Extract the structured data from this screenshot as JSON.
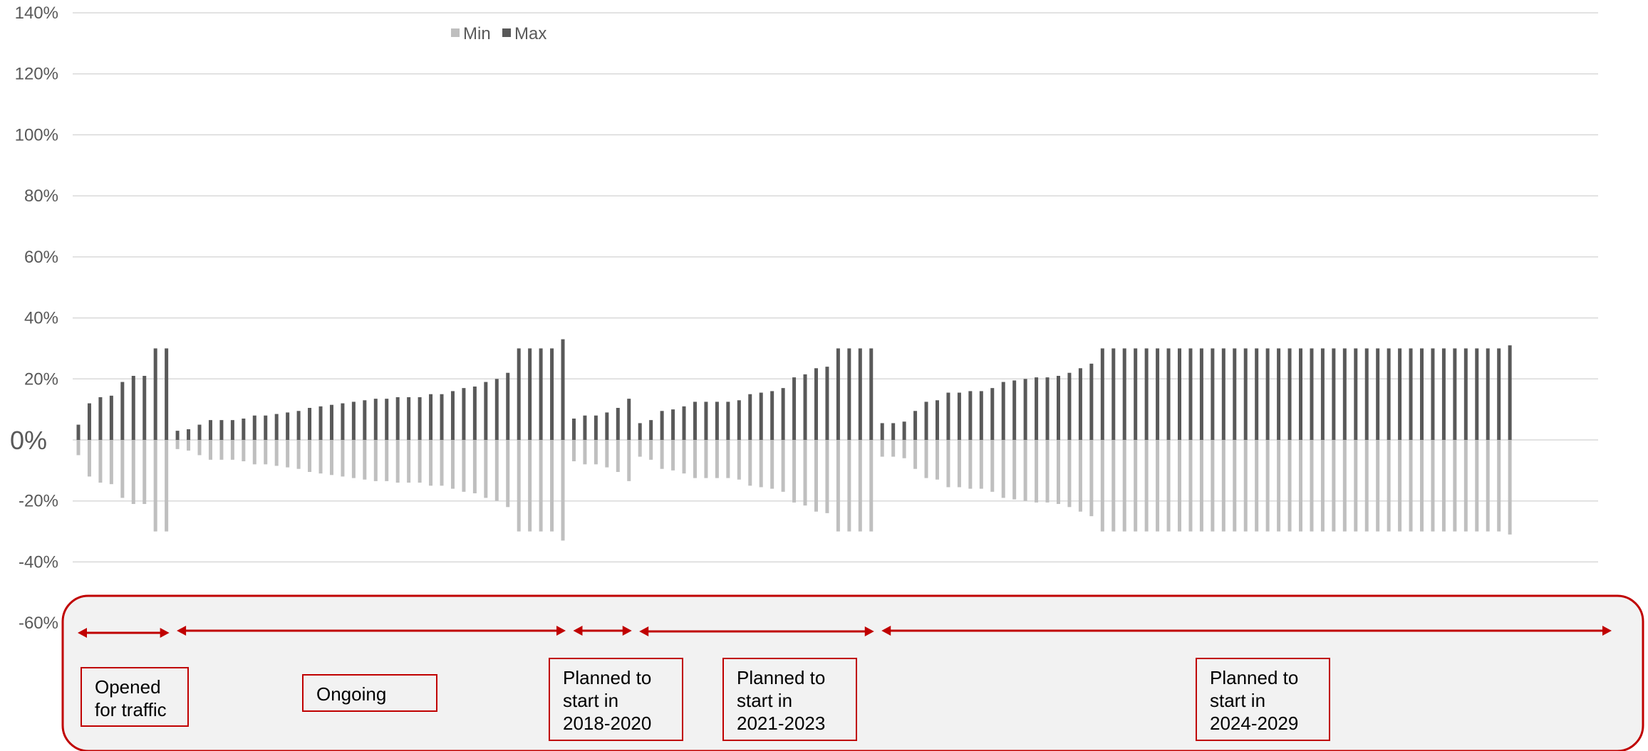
{
  "chart_data": {
    "type": "bar",
    "ylim": [
      -60,
      140
    ],
    "yticks": [
      "140%",
      "120%",
      "100%",
      "80%",
      "60%",
      "40%",
      "20%",
      "0%",
      "-20%",
      "-40%",
      "-60%"
    ],
    "ytick_values": [
      140,
      120,
      100,
      80,
      60,
      40,
      20,
      0,
      -20,
      -40,
      -60
    ],
    "grid": true,
    "legend": "top-left",
    "colors": {
      "min": "#bfbfbf",
      "max": "#595959",
      "annotation": "#c00000",
      "panel": "#f2f2f2"
    },
    "series": [
      {
        "name": "Min",
        "values": [
          -5,
          -12,
          -14,
          -14.5,
          -19,
          -21,
          -21,
          -30,
          -30,
          -3,
          -3.5,
          -5,
          -6.5,
          -6.5,
          -6.5,
          -7,
          -8,
          -8,
          -8.5,
          -9,
          -9.5,
          -10.5,
          -11,
          -11.5,
          -12,
          -12.5,
          -13,
          -13.5,
          -13.5,
          -14,
          -14,
          -14,
          -15,
          -15,
          -16,
          -17,
          -17.5,
          -19,
          -20,
          -22,
          -30,
          -30,
          -30,
          -30,
          -33,
          -7,
          -8,
          -8,
          -9,
          -10.5,
          -13.5,
          -5.5,
          -6.5,
          -9.5,
          -10,
          -11,
          -12.5,
          -12.5,
          -12.5,
          -12.5,
          -13,
          -15,
          -15.5,
          -16,
          -17,
          -20.5,
          -21.5,
          -23.5,
          -24,
          -30,
          -30,
          -30,
          -30,
          -5.5,
          -5.5,
          -6,
          -9.5,
          -12.5,
          -13,
          -15.5,
          -15.5,
          -16,
          -16,
          -17,
          -19,
          -19.5,
          -20,
          -20.5,
          -20.5,
          -21,
          -22,
          -23.5,
          -25,
          -30,
          -30,
          -30,
          -30,
          -30,
          -30,
          -30,
          -30,
          -30,
          -30,
          -30,
          -30,
          -30,
          -30,
          -30,
          -30,
          -30,
          -30,
          -30,
          -30,
          -30,
          -30,
          -30,
          -30,
          -30,
          -30,
          -30,
          -30,
          -30,
          -30,
          -30,
          -30,
          -30,
          -30,
          -30,
          -30,
          -30,
          -31
        ]
      },
      {
        "name": "Max",
        "values": [
          5,
          12,
          14,
          14.5,
          19,
          21,
          21,
          30,
          30,
          3,
          3.5,
          5,
          6.5,
          6.5,
          6.5,
          7,
          8,
          8,
          8.5,
          9,
          9.5,
          10.5,
          11,
          11.5,
          12,
          12.5,
          13,
          13.5,
          13.5,
          14,
          14,
          14,
          15,
          15,
          16,
          17,
          17.5,
          19,
          20,
          22,
          30,
          30,
          30,
          30,
          33,
          7,
          8,
          8,
          9,
          10.5,
          13.5,
          5.5,
          6.5,
          9.5,
          10,
          11,
          12.5,
          12.5,
          12.5,
          12.5,
          13,
          15,
          15.5,
          16,
          17,
          20.5,
          21.5,
          23.5,
          24,
          30,
          30,
          30,
          30,
          5.5,
          5.5,
          6,
          9.5,
          12.5,
          13,
          15.5,
          15.5,
          16,
          16,
          17,
          19,
          19.5,
          20,
          20.5,
          20.5,
          21,
          22,
          23.5,
          25,
          30,
          30,
          30,
          30,
          30,
          30,
          30,
          30,
          30,
          30,
          30,
          30,
          30,
          30,
          30,
          30,
          30,
          30,
          30,
          30,
          30,
          30,
          30,
          30,
          30,
          30,
          30,
          30,
          30,
          30,
          30,
          30,
          30,
          30,
          30,
          30,
          30,
          31
        ]
      }
    ],
    "annotations": [
      {
        "label": "Opened\nfor traffic",
        "start_index": 0,
        "end_index": 8
      },
      {
        "label": "Ongoing",
        "start_index": 9,
        "end_index": 44
      },
      {
        "label": "Planned to\nstart in\n2018-2020",
        "start_index": 45,
        "end_index": 50
      },
      {
        "label": "Planned to\nstart in\n2021-2023",
        "start_index": 51,
        "end_index": 72
      },
      {
        "label": "Planned to\nstart in\n2024-2029",
        "start_index": 73,
        "end_index": 136
      }
    ]
  }
}
